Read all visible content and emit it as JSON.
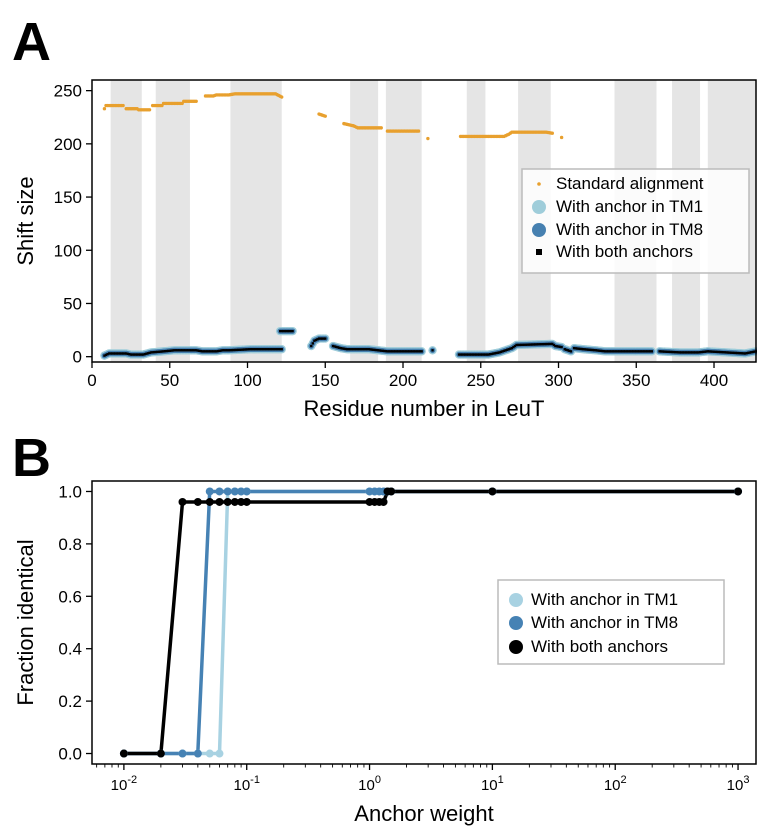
{
  "chart_data": [
    {
      "panel": "A",
      "type": "scatter",
      "title": "",
      "xlabel": "Residue number in LeuT",
      "ylabel": "Shift size",
      "xlim": [
        0,
        427
      ],
      "ylim": [
        -5,
        260
      ],
      "xticks": [
        0,
        50,
        100,
        150,
        200,
        250,
        300,
        350,
        400
      ],
      "yticks": [
        0,
        50,
        100,
        150,
        200,
        250
      ],
      "grid": false,
      "legend_position": "right",
      "shaded_x_ranges": [
        [
          12,
          32
        ],
        [
          41,
          63
        ],
        [
          89,
          122
        ],
        [
          166,
          184
        ],
        [
          189,
          212
        ],
        [
          241,
          253
        ],
        [
          274,
          295
        ],
        [
          336,
          363
        ],
        [
          373,
          391
        ],
        [
          396,
          427
        ]
      ],
      "colors": {
        "standard": "#E8A02E",
        "tm1": "#9FCDDA",
        "tm8": "#4680B0",
        "both": "#000000",
        "shade": "#E5E5E5"
      },
      "series": [
        {
          "name": "Standard alignment",
          "segments": [
            [
              [
                8,
                233
              ],
              [
                9,
                236
              ],
              [
                20,
                236
              ]
            ],
            [
              [
                22,
                233
              ],
              [
                29,
                233
              ],
              [
                30,
                232
              ],
              [
                37,
                232
              ]
            ],
            [
              [
                39,
                236
              ],
              [
                45,
                236
              ],
              [
                46,
                238
              ],
              [
                58,
                238
              ]
            ],
            [
              [
                59,
                240
              ],
              [
                67,
                240
              ]
            ],
            [
              [
                73,
                245
              ],
              [
                78,
                245
              ],
              [
                80,
                246
              ],
              [
                88,
                246
              ],
              [
                92,
                247
              ],
              [
                118,
                247
              ],
              [
                122,
                244
              ]
            ],
            [
              [
                146,
                228
              ],
              [
                150,
                226
              ]
            ],
            [
              [
                162,
                219
              ],
              [
                168,
                217
              ],
              [
                171,
                215
              ],
              [
                186,
                215
              ]
            ],
            [
              [
                190,
                212
              ],
              [
                210,
                212
              ]
            ],
            [
              [
                216,
                205
              ]
            ],
            [
              [
                237,
                207
              ],
              [
                250,
                207
              ],
              [
                265,
                207
              ],
              [
                268,
                209
              ],
              [
                270,
                211
              ],
              [
                292,
                211
              ],
              [
                296,
                210
              ]
            ],
            [
              [
                302,
                206
              ]
            ]
          ]
        },
        {
          "name": "With anchor in TM1",
          "segments": [
            [
              [
                8,
                1
              ],
              [
                11,
                3
              ],
              [
                15,
                3
              ],
              [
                22,
                3
              ],
              [
                25,
                2
              ],
              [
                33,
                2
              ],
              [
                38,
                4
              ],
              [
                46,
                5
              ],
              [
                53,
                6
              ],
              [
                67,
                6
              ],
              [
                71,
                5
              ],
              [
                80,
                5
              ],
              [
                84,
                6
              ],
              [
                88,
                6
              ],
              [
                102,
                7
              ],
              [
                122,
                7
              ]
            ],
            [
              [
                121,
                24
              ],
              [
                129,
                24
              ]
            ],
            [
              [
                141,
                10
              ],
              [
                143,
                15
              ],
              [
                146,
                17
              ],
              [
                150,
                17
              ]
            ],
            [
              [
                155,
                10
              ],
              [
                160,
                8
              ],
              [
                164,
                7
              ],
              [
                178,
                7
              ],
              [
                184,
                6
              ],
              [
                190,
                5
              ],
              [
                212,
                5
              ]
            ],
            [
              [
                219,
                6
              ]
            ],
            [
              [
                236,
                2
              ],
              [
                255,
                2
              ],
              [
                262,
                4
              ],
              [
                270,
                8
              ],
              [
                273,
                11
              ],
              [
                296,
                12
              ],
              [
                298,
                10
              ],
              [
                302,
                9
              ]
            ],
            [
              [
                304,
                7
              ],
              [
                308,
                5
              ]
            ],
            [
              [
                310,
                8
              ],
              [
                316,
                7
              ],
              [
                324,
                6
              ],
              [
                330,
                5
              ],
              [
                360,
                5
              ]
            ],
            [
              [
                365,
                5
              ],
              [
                378,
                4
              ],
              [
                390,
                4
              ],
              [
                396,
                5
              ],
              [
                408,
                4
              ],
              [
                420,
                3
              ],
              [
                427,
                5
              ]
            ]
          ]
        },
        {
          "name": "With anchor in TM8",
          "segments": [
            [
              [
                8,
                1
              ],
              [
                11,
                3
              ],
              [
                15,
                3
              ],
              [
                22,
                3
              ],
              [
                25,
                2
              ],
              [
                33,
                2
              ],
              [
                38,
                4
              ],
              [
                46,
                5
              ],
              [
                53,
                6
              ],
              [
                67,
                6
              ],
              [
                71,
                5
              ],
              [
                80,
                5
              ],
              [
                84,
                6
              ],
              [
                88,
                6
              ],
              [
                102,
                7
              ],
              [
                122,
                7
              ]
            ],
            [
              [
                121,
                24
              ],
              [
                129,
                24
              ]
            ],
            [
              [
                141,
                10
              ],
              [
                143,
                15
              ],
              [
                146,
                17
              ],
              [
                150,
                17
              ]
            ],
            [
              [
                155,
                10
              ],
              [
                160,
                8
              ],
              [
                164,
                7
              ],
              [
                178,
                7
              ],
              [
                184,
                6
              ],
              [
                190,
                5
              ],
              [
                212,
                5
              ]
            ],
            [
              [
                219,
                6
              ]
            ],
            [
              [
                236,
                2
              ],
              [
                255,
                2
              ],
              [
                262,
                4
              ],
              [
                270,
                8
              ],
              [
                273,
                11
              ],
              [
                296,
                12
              ],
              [
                298,
                10
              ],
              [
                302,
                9
              ]
            ],
            [
              [
                304,
                7
              ],
              [
                308,
                5
              ]
            ],
            [
              [
                310,
                8
              ],
              [
                316,
                7
              ],
              [
                324,
                6
              ],
              [
                330,
                5
              ],
              [
                360,
                5
              ]
            ],
            [
              [
                365,
                5
              ],
              [
                378,
                4
              ],
              [
                390,
                4
              ],
              [
                396,
                5
              ],
              [
                408,
                4
              ],
              [
                420,
                3
              ],
              [
                427,
                5
              ]
            ]
          ]
        },
        {
          "name": "With both anchors",
          "segments": [
            [
              [
                8,
                1
              ],
              [
                11,
                3
              ],
              [
                15,
                3
              ],
              [
                22,
                3
              ],
              [
                25,
                2
              ],
              [
                33,
                2
              ],
              [
                38,
                4
              ],
              [
                46,
                5
              ],
              [
                53,
                6
              ],
              [
                67,
                6
              ],
              [
                71,
                5
              ],
              [
                80,
                5
              ],
              [
                84,
                6
              ],
              [
                88,
                6
              ],
              [
                102,
                7
              ],
              [
                122,
                7
              ]
            ],
            [
              [
                121,
                24
              ],
              [
                129,
                24
              ]
            ],
            [
              [
                141,
                10
              ],
              [
                143,
                15
              ],
              [
                146,
                17
              ],
              [
                150,
                17
              ]
            ],
            [
              [
                155,
                10
              ],
              [
                160,
                8
              ],
              [
                164,
                7
              ],
              [
                178,
                7
              ],
              [
                184,
                6
              ],
              [
                190,
                5
              ],
              [
                212,
                5
              ]
            ],
            [
              [
                219,
                6
              ]
            ],
            [
              [
                236,
                2
              ],
              [
                255,
                2
              ],
              [
                262,
                4
              ],
              [
                270,
                8
              ],
              [
                273,
                11
              ],
              [
                296,
                12
              ],
              [
                298,
                10
              ],
              [
                302,
                9
              ]
            ],
            [
              [
                304,
                7
              ],
              [
                308,
                5
              ]
            ],
            [
              [
                310,
                8
              ],
              [
                316,
                7
              ],
              [
                324,
                6
              ],
              [
                330,
                5
              ],
              [
                360,
                5
              ]
            ],
            [
              [
                365,
                5
              ],
              [
                378,
                4
              ],
              [
                390,
                4
              ],
              [
                396,
                5
              ],
              [
                408,
                4
              ],
              [
                420,
                3
              ],
              [
                427,
                5
              ]
            ]
          ]
        }
      ]
    },
    {
      "panel": "B",
      "type": "line",
      "title": "",
      "xlabel": "Anchor weight",
      "ylabel": "Fraction identical",
      "xscale": "log",
      "xlim": [
        0.0055,
        1400
      ],
      "ylim": [
        -0.04,
        1.04
      ],
      "xticks": [
        0.01,
        0.1,
        1,
        10,
        100,
        1000
      ],
      "xtick_base": "10",
      "xtick_exponents": [
        "-2",
        "-1",
        "0",
        "1",
        "2",
        "3"
      ],
      "yticks": [
        0.0,
        0.2,
        0.4,
        0.6,
        0.8,
        1.0
      ],
      "ytick_labels": [
        "0.0",
        "0.2",
        "0.4",
        "0.6",
        "0.8",
        "1.0"
      ],
      "grid": false,
      "legend_position": "center-right",
      "series": [
        {
          "name": "With anchor in TM1",
          "color": "#A8D2E2",
          "x": [
            0.01,
            0.02,
            0.03,
            0.04,
            0.05,
            0.06,
            0.07,
            0.08,
            0.09,
            0.1,
            1,
            1.1,
            1.2,
            1.3,
            1.4,
            1.5,
            10,
            1000
          ],
          "y": [
            0,
            0,
            0,
            0,
            0,
            0,
            1,
            1,
            1,
            1,
            1,
            1,
            1,
            1,
            1,
            1,
            1,
            1
          ]
        },
        {
          "name": "With anchor in TM8",
          "color": "#4682B4",
          "x": [
            0.01,
            0.02,
            0.03,
            0.04,
            0.05,
            0.06,
            0.07,
            0.08,
            0.09,
            0.1,
            1,
            1.1,
            1.2,
            1.3,
            1.4,
            1.5,
            10,
            1000
          ],
          "y": [
            0,
            0,
            0,
            0,
            1,
            1,
            1,
            1,
            1,
            1,
            1,
            1,
            1,
            1,
            1,
            1,
            1,
            1
          ]
        },
        {
          "name": "With both anchors",
          "color": "#000000",
          "x": [
            0.01,
            0.02,
            0.03,
            0.04,
            0.05,
            0.06,
            0.07,
            0.08,
            0.09,
            0.1,
            1,
            1.1,
            1.2,
            1.3,
            1.4,
            1.5,
            10,
            1000
          ],
          "y": [
            0,
            0,
            0.96,
            0.96,
            0.96,
            0.96,
            0.96,
            0.96,
            0.96,
            0.96,
            0.96,
            0.96,
            0.96,
            0.96,
            1,
            1,
            1,
            1
          ]
        }
      ]
    }
  ]
}
